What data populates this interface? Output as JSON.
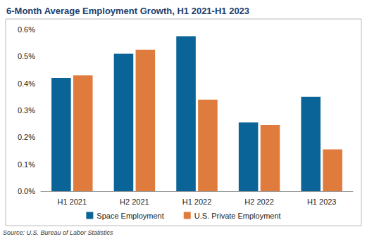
{
  "chart_data": {
    "type": "bar",
    "title": "6-Month Average Employment Growth, H1 2021-H1 2023",
    "source": "Source: U.S. Bureau of Labor Statistics",
    "categories": [
      "H1 2021",
      "H2 2021",
      "H1 2022",
      "H2 2022",
      "H1 2023"
    ],
    "series": [
      {
        "name": "Space Employment",
        "color": "#0a6498",
        "values": [
          0.42,
          0.51,
          0.575,
          0.255,
          0.35
        ]
      },
      {
        "name": "U.S. Private Employment",
        "color": "#e07b3e",
        "values": [
          0.43,
          0.525,
          0.34,
          0.245,
          0.155
        ]
      }
    ],
    "ylim": [
      0,
      0.6
    ],
    "yticks": [
      {
        "value": 0,
        "label": "0.0%"
      },
      {
        "value": 0.1,
        "label": "0.1%"
      },
      {
        "value": 0.2,
        "label": "0.2%"
      },
      {
        "value": 0.3,
        "label": "0.3%"
      },
      {
        "value": 0.4,
        "label": "0.4%"
      },
      {
        "value": 0.5,
        "label": "0.5%"
      },
      {
        "value": 0.6,
        "label": "0.6%"
      }
    ],
    "grid": false,
    "legend": "bottom"
  }
}
